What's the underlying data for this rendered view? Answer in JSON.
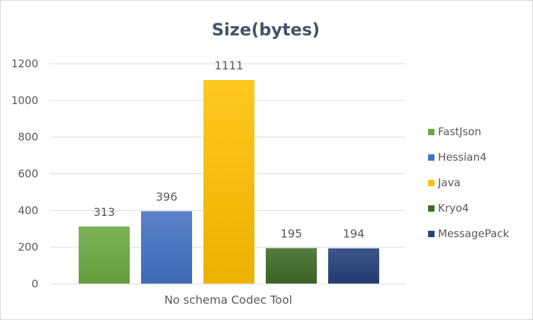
{
  "chart_data": {
    "type": "bar",
    "title": "Size(bytes)",
    "xlabel": "",
    "ylabel": "",
    "categories": [
      "No schema Codec Tool"
    ],
    "series": [
      {
        "name": "FastJson",
        "values": [
          313
        ],
        "color": "#6aaa3f"
      },
      {
        "name": "Hessian4",
        "values": [
          396
        ],
        "color": "#4472c4"
      },
      {
        "name": "Java",
        "values": [
          1111
        ],
        "color": "#ffc000"
      },
      {
        "name": "Kryo4",
        "values": [
          195
        ],
        "color": "#3f6a26"
      },
      {
        "name": "MessagePack",
        "values": [
          194
        ],
        "color": "#24407a"
      }
    ],
    "ylim": [
      0,
      1200
    ],
    "yticks": [
      0,
      200,
      400,
      600,
      800,
      1000,
      1200
    ],
    "grid": true,
    "legend_position": "right",
    "data_labels": true
  }
}
